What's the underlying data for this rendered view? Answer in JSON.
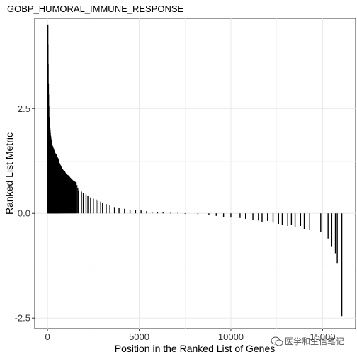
{
  "chart_data": {
    "type": "bar",
    "title": "GOBP_HUMORAL_IMMUNE_RESPONSE",
    "xlabel": "Position in the Ranked List of Genes",
    "ylabel": "Ranked List Metric",
    "xlim": [
      -700,
      16800
    ],
    "ylim": [
      -2.75,
      4.65
    ],
    "xticks": [
      0,
      5000,
      10000,
      15000
    ],
    "xtick_labels": [
      "0",
      "5000",
      "10000",
      "15000"
    ],
    "yticks": [
      -2.5,
      0.0,
      2.5
    ],
    "ytick_labels": [
      "-2.5",
      "0.0",
      "2.5"
    ],
    "grid": true,
    "bar_color": "#000000",
    "series": [
      {
        "x": [
          20,
          50,
          90,
          130,
          170,
          200,
          240,
          280,
          320,
          360,
          400,
          440,
          480,
          520,
          560,
          600,
          650,
          700,
          760,
          820,
          880,
          940,
          1000,
          1080,
          1160,
          1240,
          1320,
          1400,
          1480,
          1560,
          1700,
          1850,
          1950,
          2100,
          2200,
          2350,
          2500,
          2650,
          2750,
          2900,
          3000,
          3200,
          3400,
          3650,
          3900,
          4200,
          4500,
          4800,
          5100,
          5400,
          5700,
          6000,
          6300,
          6700,
          7100,
          7500,
          8200,
          8800,
          9200,
          9600,
          10000,
          10500,
          10800,
          11200,
          11500,
          11700,
          12000,
          12300,
          12600,
          12800,
          13100,
          13300,
          13500,
          13800,
          14000,
          14300,
          14900,
          15300,
          15500,
          15700,
          15800,
          16050
        ],
        "values": [
          4.5,
          3.1,
          2.3,
          2.05,
          1.85,
          1.75,
          1.65,
          1.6,
          1.55,
          1.5,
          1.45,
          1.42,
          1.4,
          1.35,
          1.32,
          1.28,
          1.2,
          1.15,
          1.1,
          1.05,
          1.02,
          1.0,
          0.95,
          0.92,
          0.9,
          0.85,
          0.82,
          0.78,
          0.76,
          0.74,
          0.55,
          0.52,
          0.48,
          0.45,
          0.42,
          0.38,
          0.35,
          0.33,
          0.3,
          0.28,
          0.25,
          0.22,
          0.2,
          0.15,
          0.13,
          0.11,
          0.09,
          0.08,
          0.07,
          0.05,
          0.04,
          0.03,
          0.02,
          0.01,
          0.01,
          -0.01,
          -0.02,
          -0.04,
          -0.06,
          -0.08,
          -0.1,
          -0.11,
          -0.13,
          -0.15,
          -0.17,
          -0.2,
          -0.18,
          -0.22,
          -0.25,
          -0.28,
          -0.3,
          -0.28,
          -0.33,
          -0.3,
          -0.38,
          -0.4,
          -0.45,
          -0.6,
          -0.8,
          -0.95,
          -1.2,
          -2.45
        ]
      }
    ]
  },
  "watermark": {
    "icon": "wechat-icon",
    "text": "医学和生信笔记"
  }
}
